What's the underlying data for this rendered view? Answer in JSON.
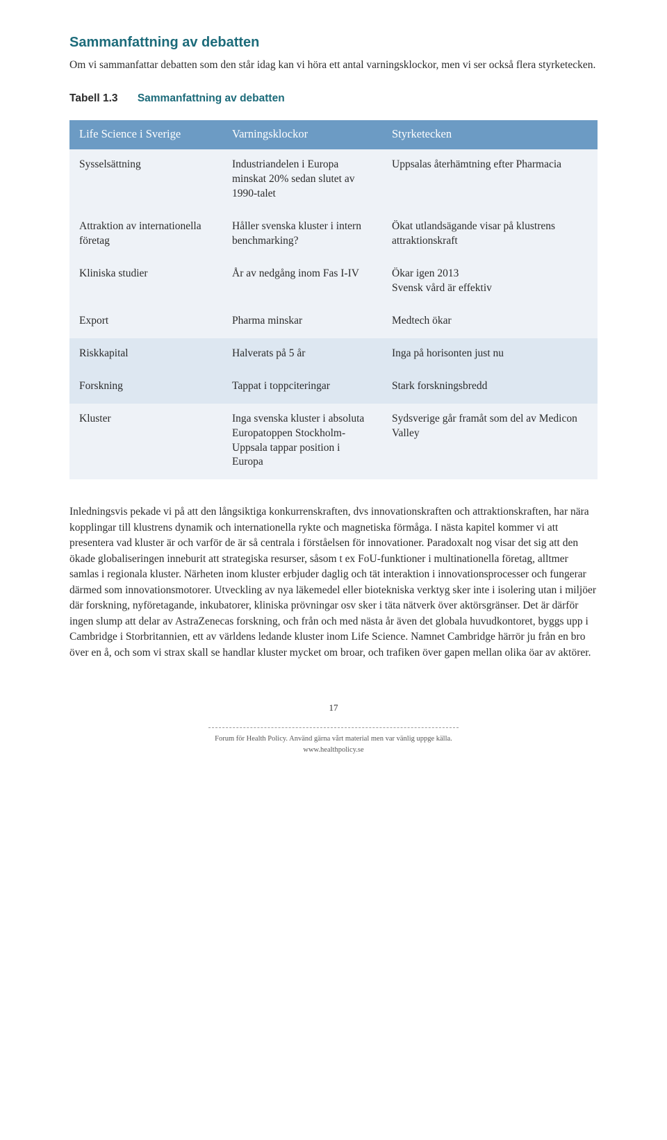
{
  "section": {
    "heading": "Sammanfattning av debatten",
    "intro": "Om vi sammanfattar debatten som den står idag kan vi höra ett antal varningsklockor, men vi ser också flera styrketecken."
  },
  "caption": {
    "num": "Tabell 1.3",
    "text": "Sammanfattning av debatten"
  },
  "colors": {
    "heading": "#1c6b7a",
    "header_bg": "#6c9bc4",
    "header_fg": "#ffffff",
    "band_a": "#eef2f7",
    "band_b": "#dde7f1",
    "body_text": "#2b2b2b"
  },
  "table": {
    "headers": [
      "Life Science i Sverige",
      "Varningsklockor",
      "Styrketecken"
    ],
    "rows": [
      {
        "band": "a",
        "cells": [
          "Sysselsättning",
          "Industriandelen i Europa minskat 20% sedan slutet av 1990-talet",
          "Uppsalas återhämtning efter Pharmacia"
        ]
      },
      {
        "band": "a",
        "cells": [
          "Attraktion av internationella företag",
          "Håller svenska kluster i intern benchmarking?",
          "Ökat utlandsägande visar på klustrens attraktionskraft"
        ]
      },
      {
        "band": "a",
        "cells": [
          "Kliniska studier",
          "År av nedgång inom Fas I-IV",
          "Ökar igen 2013\nSvensk vård är effektiv"
        ]
      },
      {
        "band": "a",
        "cells": [
          "Export",
          "Pharma minskar",
          "Medtech ökar"
        ]
      },
      {
        "band": "b",
        "cells": [
          "Riskkapital",
          "Halverats på 5 år",
          "Inga på horisonten just nu"
        ]
      },
      {
        "band": "b",
        "cells": [
          "Forskning",
          "Tappat i toppciteringar",
          "Stark forskningsbredd"
        ]
      },
      {
        "band": "a",
        "cells": [
          "Kluster",
          "Inga svenska kluster i absoluta Europatoppen Stockholm-Uppsala tappar position i Europa",
          "Sydsverige går framåt som del av Medicon Valley"
        ]
      }
    ]
  },
  "body_para": "Inledningsvis pekade vi på att den långsiktiga konkurrenskraften, dvs innovationskraften och attraktionskraften, har nära kopplingar till klustrens dynamik och internationella rykte och magnetiska förmåga. I nästa kapitel kommer vi att presentera vad kluster är och varför de är så centrala i förståelsen för innovationer. Paradoxalt nog visar det sig att den ökade globaliseringen inneburit att strategiska resurser, såsom t ex FoU-funktioner i multinationella företag, alltmer samlas i regionala kluster. Närheten inom kluster erbjuder daglig och tät interaktion i innovationsprocesser och fungerar därmed som innovationsmotorer. Utveckling av nya läkemedel eller biotekniska verktyg sker inte i isolering utan i miljöer där forskning, nyföretagande, inkubatorer, kliniska prövningar osv sker i täta nätverk över aktörsgränser. Det är därför ingen slump att delar av AstraZenecas forskning, och från och med nästa år även det globala huvudkontoret, byggs upp i Cambridge i Storbritannien, ett av världens ledande kluster inom Life Science. Namnet Cambridge härrör ju från en bro över en å, och som vi strax skall se handlar kluster mycket om broar, och trafiken över gapen mellan olika öar av aktörer.",
  "page_number": "17",
  "footer": {
    "line1": "Forum för Health Policy. Använd gärna vårt material men var vänlig uppge källa.",
    "line2": "www.healthpolicy.se"
  }
}
